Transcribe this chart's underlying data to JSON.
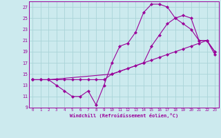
{
  "xlabel": "Windchill (Refroidissement éolien,°C)",
  "bg_color": "#cceaee",
  "grid_color": "#aad4d8",
  "line_color": "#990099",
  "xlim": [
    -0.5,
    23.5
  ],
  "ylim": [
    9,
    28
  ],
  "xticks": [
    0,
    1,
    2,
    3,
    4,
    5,
    6,
    7,
    8,
    9,
    10,
    11,
    12,
    13,
    14,
    15,
    16,
    17,
    18,
    19,
    20,
    21,
    22,
    23
  ],
  "yticks": [
    9,
    11,
    13,
    15,
    17,
    19,
    21,
    23,
    25,
    27
  ],
  "line1_x": [
    0,
    1,
    2,
    3,
    4,
    5,
    6,
    7,
    8,
    9,
    10,
    11,
    12,
    13,
    14,
    15,
    16,
    17,
    18,
    19,
    20,
    21,
    22,
    23
  ],
  "line1_y": [
    14,
    14,
    14,
    13,
    12,
    11,
    11,
    12,
    9.5,
    13,
    17,
    20,
    20.5,
    22.5,
    26,
    27.5,
    27.5,
    27,
    25,
    25.5,
    25,
    21,
    21,
    19
  ],
  "line2_x": [
    0,
    1,
    2,
    3,
    4,
    5,
    6,
    7,
    8,
    9,
    10,
    11,
    12,
    13,
    14,
    15,
    16,
    17,
    18,
    19,
    20,
    21,
    22,
    23
  ],
  "line2_y": [
    14,
    14,
    14,
    14,
    14,
    14,
    14,
    14,
    14,
    14,
    15,
    15.5,
    16,
    16.5,
    17,
    17.5,
    18,
    18.5,
    19,
    19.5,
    20,
    20.5,
    21,
    18.5
  ],
  "line3_x": [
    0,
    2,
    10,
    14,
    15,
    16,
    17,
    18,
    19,
    20,
    21,
    22,
    23
  ],
  "line3_y": [
    14,
    14,
    15,
    17,
    20,
    22,
    24,
    25,
    24,
    23,
    21,
    21,
    19
  ]
}
